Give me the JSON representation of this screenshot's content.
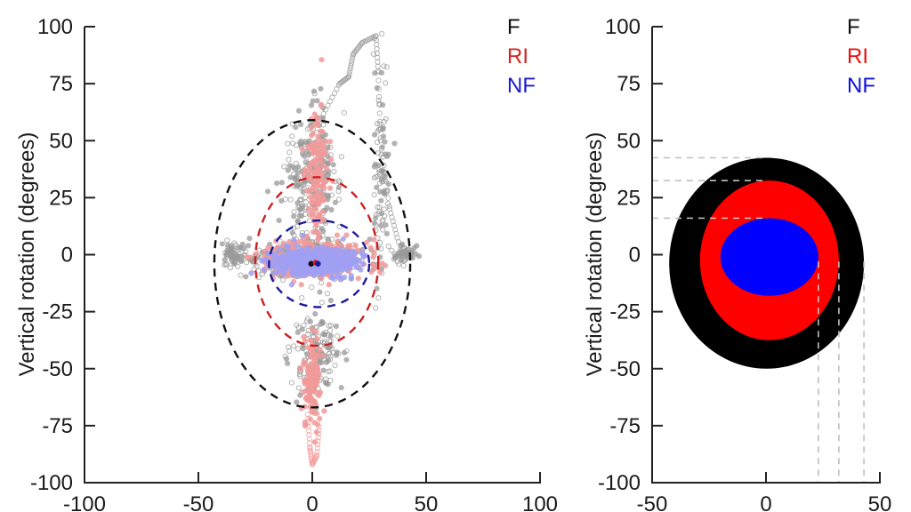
{
  "chart_data": [
    {
      "type": "scatter",
      "panel": "left",
      "title": "",
      "xlabel": "",
      "ylabel": "Vertical rotation (degrees)",
      "xlim": [
        -100,
        100
      ],
      "ylim": [
        -100,
        100
      ],
      "xticks": [
        -100,
        -50,
        0,
        50,
        100
      ],
      "yticks": [
        100,
        75,
        50,
        25,
        0,
        -25,
        -50,
        -75,
        -100
      ],
      "xtick_labels": [
        "-100",
        "-50",
        "0",
        "50",
        "100"
      ],
      "ytick_labels": [
        "100",
        "75",
        "50",
        "25",
        "0",
        "-25",
        "-50",
        "-75",
        "-100"
      ],
      "grid": false,
      "legend": {
        "placement": "top-right",
        "entries": [
          {
            "label": "F",
            "color": "#111111"
          },
          {
            "label": "RI",
            "color": "#d42020"
          },
          {
            "label": "NF",
            "color": "#1a1ad0"
          }
        ]
      },
      "series": [
        {
          "name": "F",
          "point_color": "#9a9a9a",
          "ellipse": {
            "cx": 0,
            "cy": -4,
            "rx": 43,
            "ry": 63,
            "color": "#111111",
            "style": "dashed"
          },
          "mean": {
            "x": -0.5,
            "y": -4
          },
          "trace_clouds": [
            {
              "cx": -3,
              "cy": -2,
              "sx": 22,
              "sy": 6,
              "n": 420
            },
            {
              "cx": 0,
              "cy": 30,
              "sx": 10,
              "sy": 28,
              "n": 260
            },
            {
              "cx": 2,
              "cy": -45,
              "sx": 9,
              "sy": 16,
              "n": 160
            },
            {
              "cx": 30,
              "cy": 35,
              "sx": 3,
              "sy": 40,
              "n": 90
            },
            {
              "cx": 40,
              "cy": 0,
              "sx": 4,
              "sy": 4,
              "n": 60
            },
            {
              "cx": -35,
              "cy": 0,
              "sx": 4,
              "sy": 4,
              "n": 60
            }
          ],
          "extreme_trace": [
            [
              -2,
              55
            ],
            [
              4,
              60
            ],
            [
              12,
              75
            ],
            [
              16,
              78
            ],
            [
              18,
              88
            ],
            [
              22,
              93
            ],
            [
              28,
              96
            ],
            [
              29,
              80
            ],
            [
              30,
              50
            ],
            [
              34,
              20
            ],
            [
              38,
              5
            ]
          ]
        },
        {
          "name": "RI",
          "point_color": "#f29a9a",
          "ellipse": {
            "cx": 2,
            "cy": -3,
            "rx": 27,
            "ry": 37,
            "color": "#cc1f1f",
            "style": "dashed"
          },
          "mean": {
            "x": 1.5,
            "y": -3.5
          },
          "trace_clouds": [
            {
              "cx": 0,
              "cy": -2,
              "sx": 18,
              "sy": 7,
              "n": 380
            },
            {
              "cx": 2,
              "cy": 35,
              "sx": 4,
              "sy": 22,
              "n": 140
            },
            {
              "cx": 0,
              "cy": -55,
              "sx": 3,
              "sy": 18,
              "n": 120
            }
          ],
          "extreme_trace": [
            [
              -2,
              -70
            ],
            [
              -1,
              -85
            ],
            [
              0,
              -92
            ],
            [
              2,
              -88
            ],
            [
              3,
              -75
            ]
          ]
        },
        {
          "name": "NF",
          "point_color": "#a0a0f4",
          "ellipse": {
            "cx": 3,
            "cy": -4,
            "rx": 22,
            "ry": 19,
            "color": "#1a1a9e",
            "style": "dashed"
          },
          "mean": {
            "x": 2.5,
            "y": -4
          },
          "trace_clouds": [
            {
              "cx": 1,
              "cy": -3,
              "sx": 15,
              "sy": 5,
              "n": 520
            }
          ],
          "extreme_trace": []
        }
      ]
    },
    {
      "type": "area",
      "panel": "right",
      "title": "",
      "xlabel": "",
      "ylabel": "Vertical rotation (degrees)",
      "xlim": [
        -50,
        50
      ],
      "ylim": [
        -100,
        100
      ],
      "xticks": [
        -50,
        0,
        50
      ],
      "yticks": [
        100,
        75,
        50,
        25,
        0,
        -25,
        -50,
        -75,
        -100
      ],
      "xtick_labels": [
        "-50",
        "0",
        "50"
      ],
      "ytick_labels": [
        "100",
        "75",
        "50",
        "25",
        "0",
        "-25",
        "-50",
        "-75",
        "-100"
      ],
      "grid": false,
      "legend": {
        "placement": "top-right",
        "entries": [
          {
            "label": "F",
            "color": "#111111"
          },
          {
            "label": "RI",
            "color": "#e81010"
          },
          {
            "label": "NF",
            "color": "#1010e0"
          }
        ]
      },
      "series": [
        {
          "name": "F",
          "color": "#000000",
          "x_min": -42.5,
          "x_max": 43,
          "y_min": -50,
          "y_max": 42.5
        },
        {
          "name": "RI",
          "color": "#ff0000",
          "x_min": -29,
          "x_max": 32,
          "y_min": -37.5,
          "y_max": 32.5
        },
        {
          "name": "NF",
          "color": "#0000ff",
          "x_min": -20,
          "x_max": 23,
          "y_min": -18,
          "y_max": 16
        }
      ],
      "reference_lines": {
        "horizontal_at_y": [
          42.5,
          32.5,
          16
        ],
        "vertical_at_x": [
          23,
          32,
          43
        ],
        "color": "#bfbfbf",
        "style": "dashed"
      }
    }
  ]
}
